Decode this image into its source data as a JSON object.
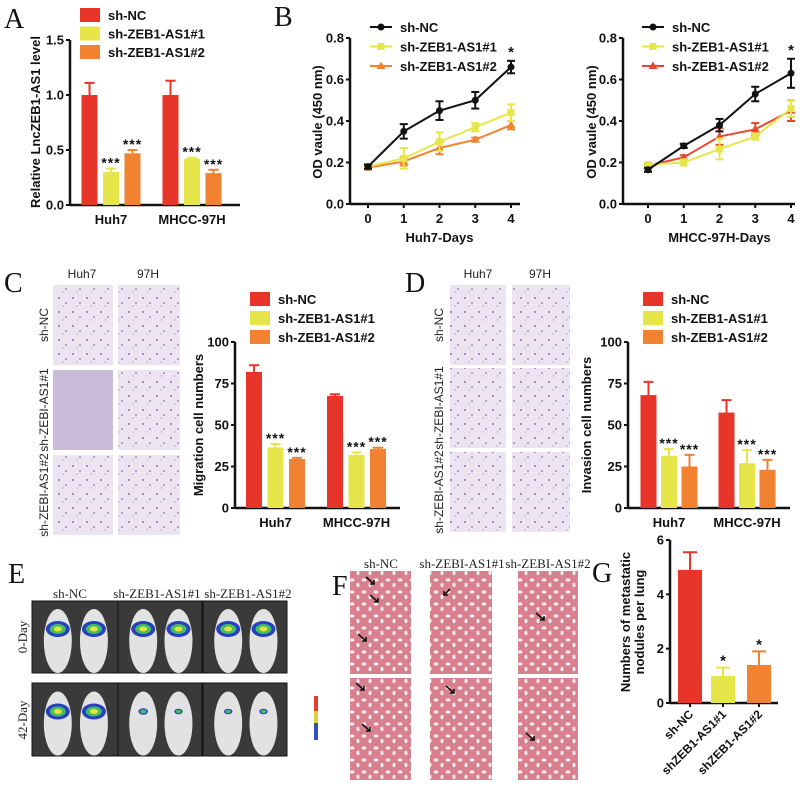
{
  "panels": {
    "A": "A",
    "B": "B",
    "C": "C",
    "D": "D",
    "E": "E",
    "F": "F",
    "G": "G"
  },
  "colors": {
    "sh_nc_bar": "#e8352a",
    "sh1": "#e6e64a",
    "sh2": "#f08232",
    "line_nc": "#111111",
    "line_sh2_b2": "#e8482e"
  },
  "panel_c_images": {
    "columns": [
      "Huh7",
      "97H"
    ],
    "rows": [
      "sh-NC",
      "sh-ZEBI-AS1#1",
      "sh-ZEBI-AS1#2"
    ]
  },
  "panel_d_images": {
    "columns": [
      "Huh7",
      "97H"
    ],
    "rows": [
      "sh-NC",
      "sh-ZEBI-AS1#1",
      "sh-ZEBI-AS1#2"
    ]
  },
  "panel_e_images": {
    "columns": [
      "sh-NC",
      "sh-ZEB1-AS1#1",
      "sh-ZEB1-AS1#2"
    ],
    "rows": [
      "0-Day",
      "42-Day"
    ]
  },
  "panel_f_images": {
    "columns": [
      "sh-NC",
      "sh-ZEBI-AS1#1",
      "sh-ZEBI-AS1#2"
    ]
  },
  "chart_data": [
    {
      "id": "A",
      "type": "bar",
      "categories": [
        "Huh7",
        "MHCC-97H"
      ],
      "series": [
        {
          "name": "sh-NC",
          "values": [
            1.0,
            1.0
          ],
          "errors": [
            0.11,
            0.13
          ],
          "annotations": [
            "",
            ""
          ]
        },
        {
          "name": "sh-ZEB1-AS1#1",
          "values": [
            0.3,
            0.42
          ],
          "errors": [
            0.03,
            0.01
          ],
          "annotations": [
            "***",
            "***"
          ]
        },
        {
          "name": "sh-ZEB1-AS1#2",
          "values": [
            0.47,
            0.29
          ],
          "errors": [
            0.03,
            0.03
          ],
          "annotations": [
            "***",
            "***"
          ]
        }
      ],
      "xlabel": "",
      "ylabel": "Relative LncZEB1-AS1 level",
      "ylim": [
        0,
        1.5
      ],
      "yticks": [
        "0.0",
        "0.5",
        "1.0",
        "1.5"
      ],
      "grid": false,
      "legend": "top"
    },
    {
      "id": "B1",
      "type": "line",
      "x": [
        0,
        1,
        2,
        3,
        4
      ],
      "series": [
        {
          "name": "sh-NC",
          "marker": "circle",
          "values": [
            0.18,
            0.35,
            0.45,
            0.5,
            0.66
          ],
          "errors": [
            0.01,
            0.035,
            0.045,
            0.04,
            0.03
          ]
        },
        {
          "name": "sh-ZEB1-AS1#1",
          "marker": "square",
          "values": [
            0.18,
            0.22,
            0.3,
            0.37,
            0.44
          ],
          "errors": [
            0.01,
            0.05,
            0.045,
            0.02,
            0.04
          ]
        },
        {
          "name": "sh-ZEB1-AS1#2",
          "marker": "triangle",
          "values": [
            0.175,
            0.205,
            0.27,
            0.31,
            0.38
          ],
          "errors": [
            0.01,
            0.02,
            0.03,
            0.01,
            0.02
          ]
        }
      ],
      "annotations": [
        {
          "x": 4,
          "text": "*"
        }
      ],
      "xlabel": "Huh7-Days",
      "ylabel": "OD vaule (450 nm)",
      "ylim": [
        0,
        0.8
      ],
      "xlim": [
        0,
        4
      ],
      "xticks": [
        "0",
        "1",
        "2",
        "3",
        "4"
      ],
      "yticks": [
        "0.0",
        "0.2",
        "0.4",
        "0.6",
        "0.8"
      ],
      "grid": false,
      "legend": "top"
    },
    {
      "id": "B2",
      "type": "line",
      "x": [
        0,
        1,
        2,
        3,
        4
      ],
      "series": [
        {
          "name": "sh-NC",
          "marker": "circle",
          "values": [
            0.165,
            0.28,
            0.38,
            0.53,
            0.63
          ],
          "errors": [
            0.01,
            0.01,
            0.03,
            0.035,
            0.07
          ]
        },
        {
          "name": "sh-ZEB1-AS1#1",
          "marker": "square",
          "values": [
            0.19,
            0.2,
            0.265,
            0.325,
            0.46
          ],
          "errors": [
            0.01,
            0.015,
            0.05,
            0.015,
            0.04
          ]
        },
        {
          "name": "sh-ZEB1-AS1#2",
          "marker": "triangle",
          "values": [
            0.185,
            0.225,
            0.325,
            0.36,
            0.45
          ],
          "errors": [
            0.01,
            0.01,
            0.04,
            0.03,
            0.05
          ]
        }
      ],
      "annotations": [
        {
          "x": 4,
          "text": "*"
        }
      ],
      "xlabel": "MHCC-97H-Days",
      "ylabel": "OD vaule (450 nm)",
      "ylim": [
        0,
        0.8
      ],
      "xlim": [
        0,
        4
      ],
      "xticks": [
        "0",
        "1",
        "2",
        "3",
        "4"
      ],
      "yticks": [
        "0.0",
        "0.2",
        "0.4",
        "0.6",
        "0.8"
      ],
      "grid": false,
      "legend": "top"
    },
    {
      "id": "C",
      "type": "bar",
      "categories": [
        "Huh7",
        "MHCC-97H"
      ],
      "series": [
        {
          "name": "sh-NC",
          "values": [
            82,
            67.5
          ],
          "errors": [
            4,
            1
          ],
          "annotations": [
            "",
            ""
          ]
        },
        {
          "name": "sh-ZEB1-AS1#1",
          "values": [
            36.5,
            32
          ],
          "errors": [
            2,
            1.5
          ],
          "annotations": [
            "***",
            "***"
          ]
        },
        {
          "name": "sh-ZEB1-AS1#2",
          "values": [
            29.5,
            35.5
          ],
          "errors": [
            0.7,
            0.8
          ],
          "annotations": [
            "***",
            "***"
          ]
        }
      ],
      "xlabel": "",
      "ylabel": "Migration cell numbers",
      "ylim": [
        0,
        100
      ],
      "yticks": [
        "0",
        "25",
        "50",
        "75",
        "100"
      ],
      "grid": false,
      "legend": "top"
    },
    {
      "id": "D",
      "type": "bar",
      "categories": [
        "Huh7",
        "MHCC-97H"
      ],
      "series": [
        {
          "name": "sh-NC",
          "values": [
            68,
            57.5
          ],
          "errors": [
            8,
            7.5
          ],
          "annotations": [
            "",
            ""
          ]
        },
        {
          "name": "sh-ZEB1-AS1#1",
          "values": [
            31.5,
            27
          ],
          "errors": [
            4,
            8
          ],
          "annotations": [
            "***",
            "***"
          ]
        },
        {
          "name": "sh-ZEB1-AS1#2",
          "values": [
            25,
            23
          ],
          "errors": [
            7,
            6
          ],
          "annotations": [
            "***",
            "***"
          ]
        }
      ],
      "xlabel": "",
      "ylabel": "Invasion cell numbers",
      "ylim": [
        0,
        100
      ],
      "yticks": [
        "0",
        "25",
        "50",
        "75",
        "100"
      ],
      "grid": false,
      "legend": "top"
    },
    {
      "id": "G",
      "type": "bar",
      "categories": [
        "sh-NC",
        "shZEB1-AS1#1",
        "shZEB1-AS1#2"
      ],
      "values": [
        4.9,
        1.0,
        1.4
      ],
      "errors": [
        0.65,
        0.3,
        0.5
      ],
      "annotations": [
        "",
        "*",
        "*"
      ],
      "xlabel": "",
      "ylabel": [
        "Numbers of metastatic",
        "nodules per lung"
      ],
      "ylim": [
        0,
        6
      ],
      "yticks": [
        "0",
        "2",
        "4",
        "6"
      ],
      "grid": false,
      "legend": "none"
    }
  ]
}
